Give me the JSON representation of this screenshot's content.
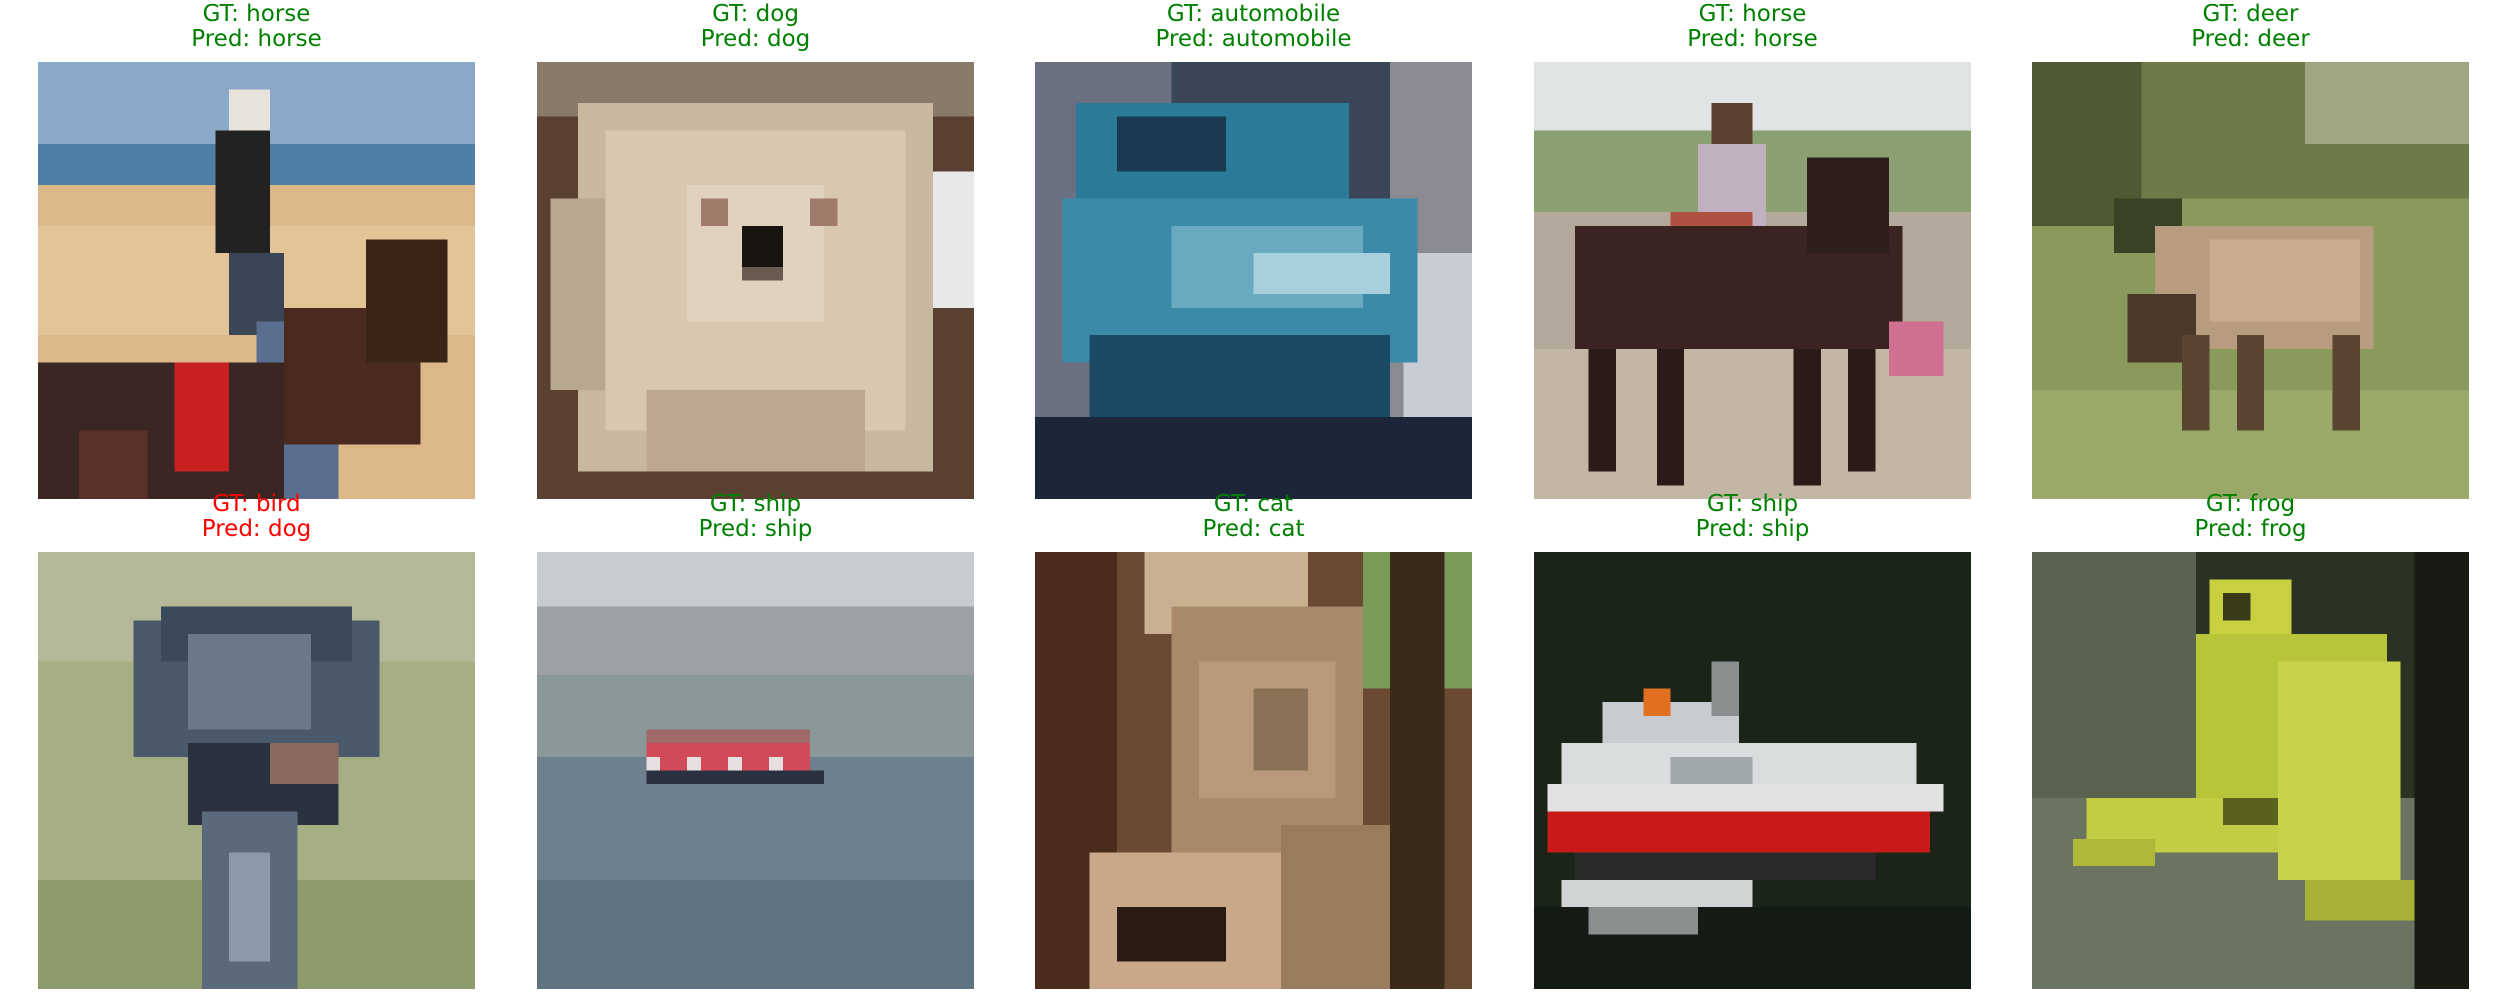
{
  "colors": {
    "correct": "#008000",
    "incorrect": "#ff0000"
  },
  "samples": [
    {
      "gt": "GT: horse",
      "pred": "Pred: horse",
      "correct": true
    },
    {
      "gt": "GT: dog",
      "pred": "Pred: dog",
      "correct": true
    },
    {
      "gt": "GT: automobile",
      "pred": "Pred: automobile",
      "correct": true
    },
    {
      "gt": "GT: horse",
      "pred": "Pred: horse",
      "correct": true
    },
    {
      "gt": "GT: deer",
      "pred": "Pred: deer",
      "correct": true
    },
    {
      "gt": "GT: bird",
      "pred": "Pred: dog",
      "correct": false
    },
    {
      "gt": "GT: ship",
      "pred": "Pred: ship",
      "correct": true
    },
    {
      "gt": "GT: cat",
      "pred": "Pred: cat",
      "correct": true
    },
    {
      "gt": "GT: ship",
      "pred": "Pred: ship",
      "correct": true
    },
    {
      "gt": "GT: frog",
      "pred": "Pred: frog",
      "correct": true
    }
  ]
}
